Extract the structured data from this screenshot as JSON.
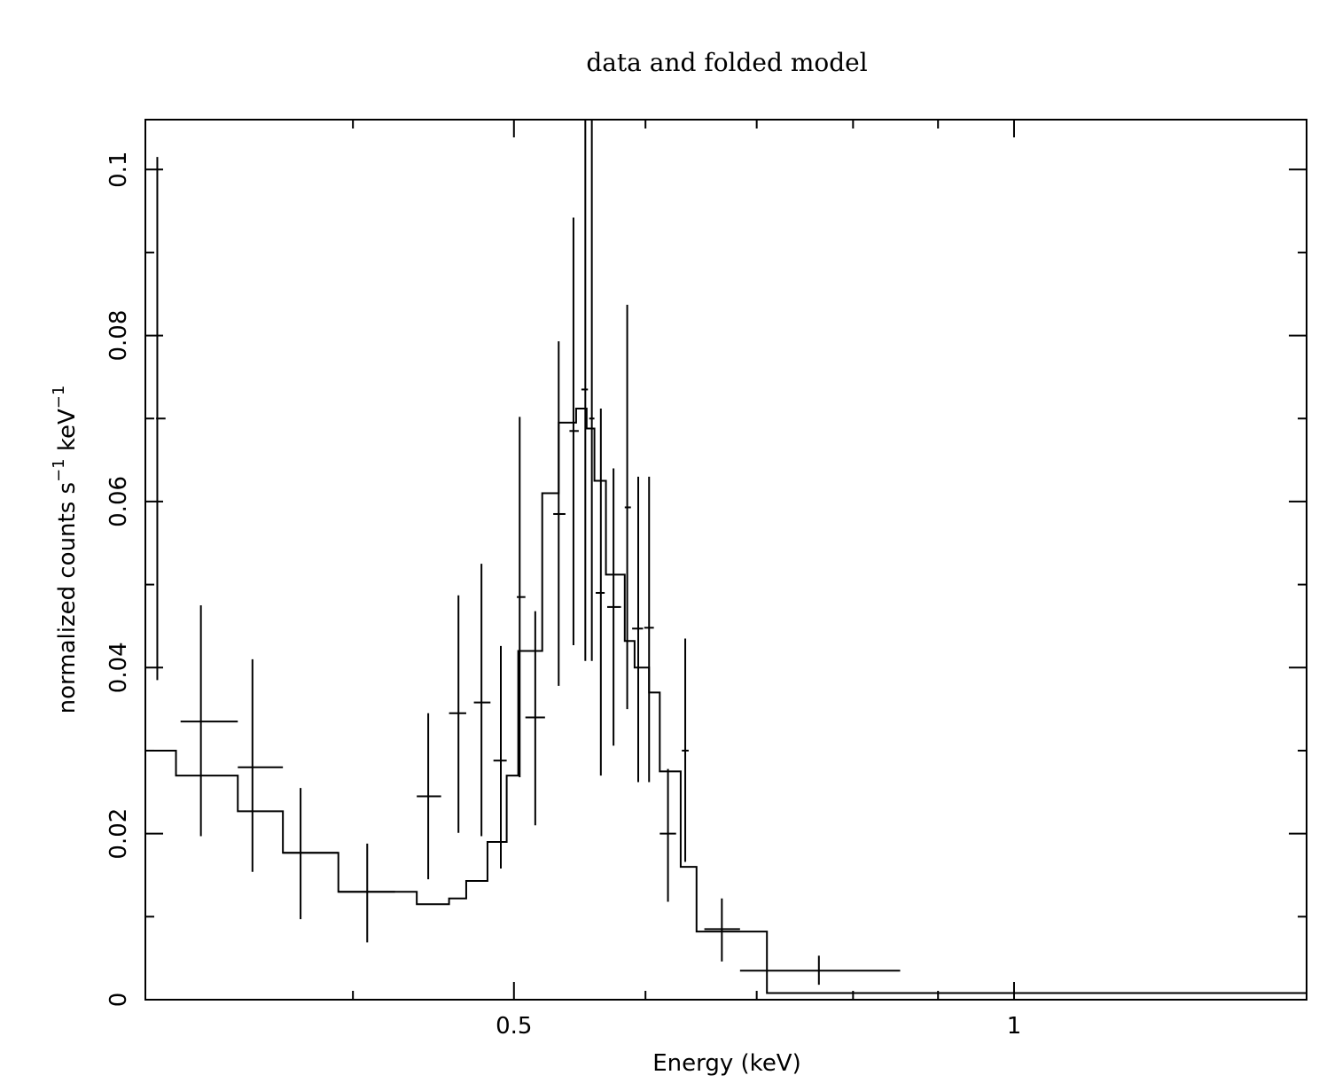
{
  "chart_data": {
    "type": "scatter",
    "title": "data and folded model",
    "xlabel": "Energy (keV)",
    "ylabel": {
      "base": "normalized counts s",
      "exp1": "−1",
      "mid": " keV",
      "exp2": "−1"
    },
    "xscale": "log",
    "xlim": [
      0.3,
      1.5
    ],
    "ylim": [
      0,
      0.106
    ],
    "x_ticks": [
      {
        "value": 0.5,
        "label": "0.5"
      },
      {
        "value": 1,
        "label": "1"
      }
    ],
    "y_ticks": [
      {
        "value": 0,
        "label": "0"
      },
      {
        "value": 0.02,
        "label": "0.02"
      },
      {
        "value": 0.04,
        "label": "0.04"
      },
      {
        "value": 0.06,
        "label": "0.06"
      },
      {
        "value": 0.08,
        "label": "0.08"
      },
      {
        "value": 0.1,
        "label": "0.1"
      }
    ],
    "grid": false,
    "data_points": [
      {
        "x": 0.305,
        "xlo": 0.3045,
        "xhi": 0.3085,
        "y": 0.07,
        "ylo": 0.0385,
        "yhi": 0.1015
      },
      {
        "x": 0.324,
        "xlo": 0.315,
        "xhi": 0.341,
        "y": 0.0335,
        "ylo": 0.0197,
        "yhi": 0.0475
      },
      {
        "x": 0.348,
        "xlo": 0.341,
        "xhi": 0.363,
        "y": 0.028,
        "ylo": 0.0154,
        "yhi": 0.041
      },
      {
        "x": 0.372,
        "xlo": 0.363,
        "xhi": 0.392,
        "y": 0.0177,
        "ylo": 0.0097,
        "yhi": 0.0255
      },
      {
        "x": 0.408,
        "xlo": 0.392,
        "xhi": 0.424,
        "y": 0.013,
        "ylo": 0.0069,
        "yhi": 0.0188
      },
      {
        "x": 0.444,
        "xlo": 0.437,
        "xhi": 0.452,
        "y": 0.0245,
        "ylo": 0.0145,
        "yhi": 0.0345
      },
      {
        "x": 0.463,
        "xlo": 0.457,
        "xhi": 0.468,
        "y": 0.0345,
        "ylo": 0.0201,
        "yhi": 0.0487
      },
      {
        "x": 0.478,
        "xlo": 0.473,
        "xhi": 0.484,
        "y": 0.0358,
        "ylo": 0.0197,
        "yhi": 0.0525
      },
      {
        "x": 0.491,
        "xlo": 0.486,
        "xhi": 0.495,
        "y": 0.0288,
        "ylo": 0.0158,
        "yhi": 0.0426
      },
      {
        "x": 0.504,
        "xlo": 0.502,
        "xhi": 0.508,
        "y": 0.0485,
        "ylo": 0.0268,
        "yhi": 0.0702
      },
      {
        "x": 0.515,
        "xlo": 0.508,
        "xhi": 0.522,
        "y": 0.034,
        "ylo": 0.021,
        "yhi": 0.0468
      },
      {
        "x": 0.532,
        "xlo": 0.528,
        "xhi": 0.537,
        "y": 0.0585,
        "ylo": 0.0378,
        "yhi": 0.0793
      },
      {
        "x": 0.543,
        "xlo": 0.54,
        "xhi": 0.547,
        "y": 0.0685,
        "ylo": 0.0427,
        "yhi": 0.0942
      },
      {
        "x": 0.552,
        "xlo": 0.549,
        "xhi": 0.554,
        "y": 0.0735,
        "ylo": 0.0408,
        "yhi": 0.106
      },
      {
        "x": 0.557,
        "xlo": 0.555,
        "xhi": 0.559,
        "y": 0.07,
        "ylo": 0.0408,
        "yhi": 0.106
      },
      {
        "x": 0.564,
        "xlo": 0.56,
        "xhi": 0.567,
        "y": 0.049,
        "ylo": 0.027,
        "yhi": 0.0712
      },
      {
        "x": 0.574,
        "xlo": 0.569,
        "xhi": 0.58,
        "y": 0.0473,
        "ylo": 0.0306,
        "yhi": 0.064
      },
      {
        "x": 0.585,
        "xlo": 0.583,
        "xhi": 0.588,
        "y": 0.0593,
        "ylo": 0.035,
        "yhi": 0.0837
      },
      {
        "x": 0.594,
        "xlo": 0.589,
        "xhi": 0.598,
        "y": 0.0447,
        "ylo": 0.0262,
        "yhi": 0.063
      },
      {
        "x": 0.603,
        "xlo": 0.599,
        "xhi": 0.607,
        "y": 0.0448,
        "ylo": 0.0262,
        "yhi": 0.063
      },
      {
        "x": 0.619,
        "xlo": 0.612,
        "xhi": 0.626,
        "y": 0.02,
        "ylo": 0.0118,
        "yhi": 0.0278
      },
      {
        "x": 0.634,
        "xlo": 0.631,
        "xhi": 0.637,
        "y": 0.03,
        "ylo": 0.0166,
        "yhi": 0.0435
      },
      {
        "x": 0.667,
        "xlo": 0.651,
        "xhi": 0.684,
        "y": 0.0085,
        "ylo": 0.0046,
        "yhi": 0.0122
      },
      {
        "x": 0.763,
        "xlo": 0.684,
        "xhi": 0.854,
        "y": 0.0035,
        "ylo": 0.0018,
        "yhi": 0.0053
      }
    ],
    "model_steps": [
      {
        "xlo": 0.3,
        "xhi": 0.313,
        "y": 0.03
      },
      {
        "xlo": 0.313,
        "xhi": 0.341,
        "y": 0.027
      },
      {
        "xlo": 0.341,
        "xhi": 0.363,
        "y": 0.0227
      },
      {
        "xlo": 0.363,
        "xhi": 0.392,
        "y": 0.0177
      },
      {
        "xlo": 0.392,
        "xhi": 0.437,
        "y": 0.013
      },
      {
        "xlo": 0.437,
        "xhi": 0.457,
        "y": 0.0115
      },
      {
        "xlo": 0.457,
        "xhi": 0.468,
        "y": 0.0122
      },
      {
        "xlo": 0.468,
        "xhi": 0.482,
        "y": 0.0143
      },
      {
        "xlo": 0.482,
        "xhi": 0.495,
        "y": 0.019
      },
      {
        "xlo": 0.495,
        "xhi": 0.503,
        "y": 0.027
      },
      {
        "xlo": 0.503,
        "xhi": 0.52,
        "y": 0.042
      },
      {
        "xlo": 0.52,
        "xhi": 0.532,
        "y": 0.061
      },
      {
        "xlo": 0.532,
        "xhi": 0.545,
        "y": 0.0695
      },
      {
        "xlo": 0.545,
        "xhi": 0.553,
        "y": 0.0712
      },
      {
        "xlo": 0.553,
        "xhi": 0.559,
        "y": 0.0688
      },
      {
        "xlo": 0.559,
        "xhi": 0.568,
        "y": 0.0625
      },
      {
        "xlo": 0.568,
        "xhi": 0.583,
        "y": 0.0512
      },
      {
        "xlo": 0.583,
        "xhi": 0.591,
        "y": 0.0432
      },
      {
        "xlo": 0.591,
        "xhi": 0.603,
        "y": 0.04
      },
      {
        "xlo": 0.603,
        "xhi": 0.612,
        "y": 0.037
      },
      {
        "xlo": 0.612,
        "xhi": 0.63,
        "y": 0.0275
      },
      {
        "xlo": 0.63,
        "xhi": 0.644,
        "y": 0.016
      },
      {
        "xlo": 0.644,
        "xhi": 0.71,
        "y": 0.0082
      },
      {
        "xlo": 0.71,
        "xhi": 1.5,
        "y": 0.0008
      }
    ]
  }
}
